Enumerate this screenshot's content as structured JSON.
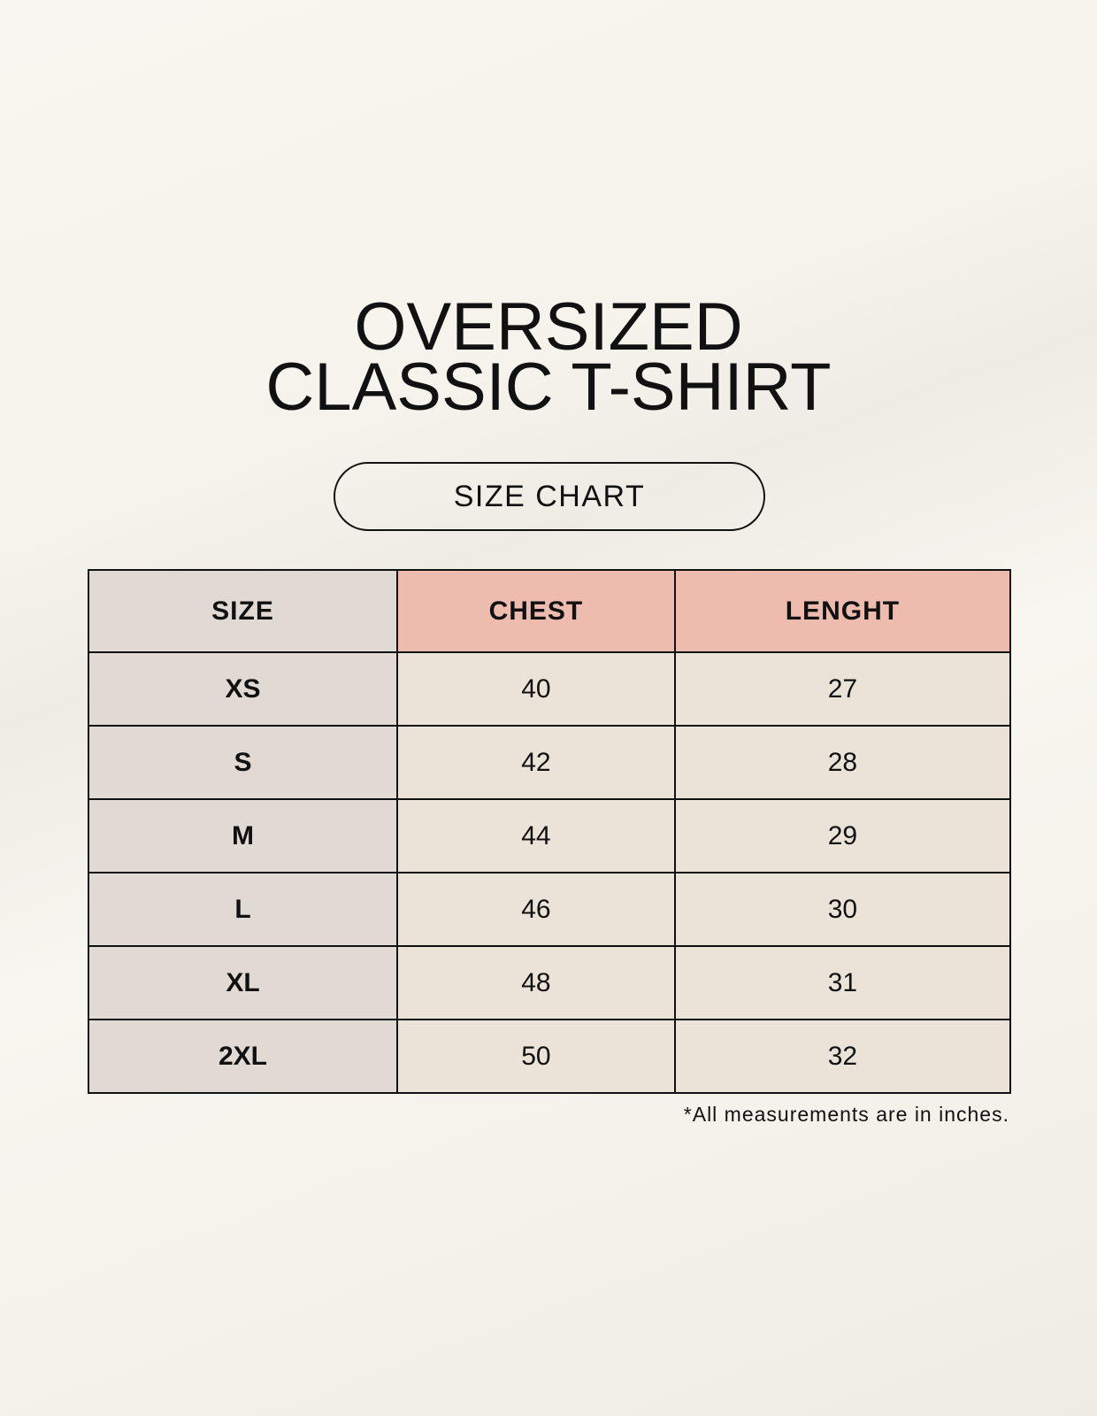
{
  "title": {
    "line1": "OVERSIZED",
    "line2": "CLASSIC T-SHIRT"
  },
  "badge": "SIZE CHART",
  "table": {
    "headers": [
      "SIZE",
      "CHEST",
      "LENGHT"
    ],
    "rows": [
      [
        "XS",
        "40",
        "27"
      ],
      [
        "S",
        "42",
        "28"
      ],
      [
        "M",
        "44",
        "29"
      ],
      [
        "L",
        "46",
        "30"
      ],
      [
        "XL",
        "48",
        "31"
      ],
      [
        "2XL",
        "50",
        "32"
      ]
    ]
  },
  "footnote": "*All measurements are in inches.",
  "colors": {
    "size_column": "#e1d9d3",
    "header_accent": "#edbcaf",
    "cells": "#ebe3d8"
  }
}
